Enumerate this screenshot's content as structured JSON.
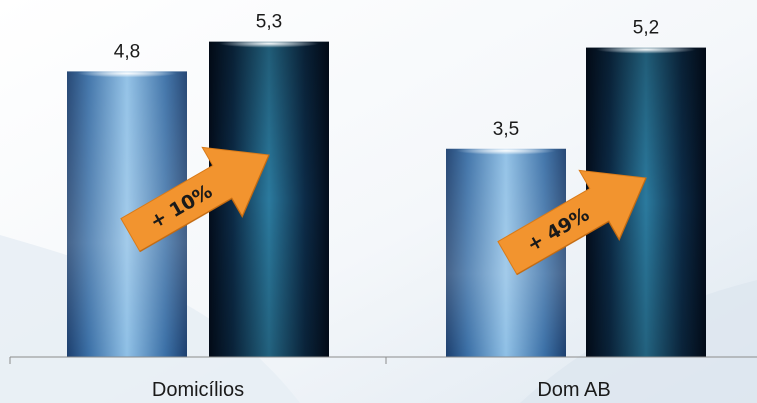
{
  "chart_data": {
    "type": "bar",
    "title": "",
    "xlabel": "",
    "ylabel": "",
    "categories": [
      "Domicílios",
      "Dom AB"
    ],
    "series": [
      {
        "values": [
          4.8,
          3.5
        ],
        "value_labels": [
          "4,8",
          "3,5"
        ],
        "color": "#4a87bd"
      },
      {
        "values": [
          5.3,
          5.2
        ],
        "value_labels": [
          "5,3",
          "5,2"
        ],
        "color": "#0e2f4a"
      }
    ],
    "annotations": [
      {
        "text": "+ 10%",
        "category": "Domicílios",
        "arrow_color": "#f2942f"
      },
      {
        "text": "+ 49%",
        "category": "Dom AB",
        "arrow_color": "#f2942f"
      }
    ],
    "ylim": [
      0,
      5.4
    ],
    "grid": false,
    "legend": "none"
  }
}
